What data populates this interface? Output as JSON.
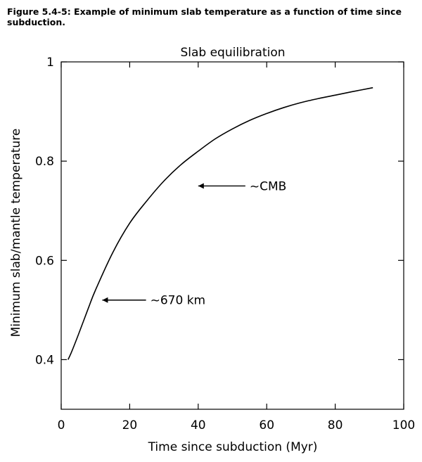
{
  "figure": {
    "caption": "Figure 5.4-5: Example of minimum slab temperature as a function of time since subduction."
  },
  "chart_data": {
    "type": "line",
    "title": "Slab equilibration",
    "xlabel": "Time since subduction (Myr)",
    "ylabel": "Minimum slab/mantle temperature",
    "xlim": [
      0,
      100
    ],
    "ylim": [
      0.3,
      1.0
    ],
    "xticks": [
      0,
      20,
      40,
      60,
      80,
      100
    ],
    "yticks": [
      0.4,
      0.6,
      0.8,
      1.0
    ],
    "xtick_labels": [
      "0",
      "20",
      "40",
      "60",
      "80",
      "100"
    ],
    "ytick_labels": [
      "0.4",
      "0.6",
      "0.8",
      "1"
    ],
    "grid": false,
    "series": [
      {
        "x": [
          2,
          3,
          5,
          8,
          10,
          15,
          20,
          25,
          30,
          35,
          40,
          45,
          50,
          55,
          60,
          65,
          70,
          75,
          80,
          85,
          91
        ],
        "y": [
          0.4,
          0.415,
          0.45,
          0.505,
          0.54,
          0.615,
          0.675,
          0.72,
          0.76,
          0.793,
          0.82,
          0.845,
          0.865,
          0.882,
          0.896,
          0.908,
          0.918,
          0.926,
          0.933,
          0.94,
          0.948
        ]
      }
    ],
    "annotations": [
      {
        "text": "~670 km",
        "point": [
          12,
          0.52
        ],
        "text_at": [
          26,
          0.52
        ]
      },
      {
        "text": "~CMB",
        "point": [
          40,
          0.75
        ],
        "text_at": [
          55,
          0.75
        ]
      }
    ]
  }
}
